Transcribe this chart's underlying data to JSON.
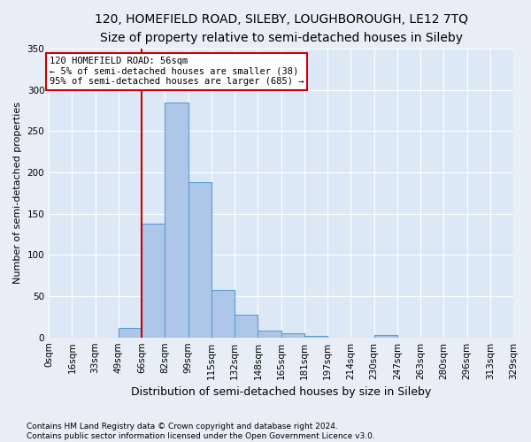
{
  "title_line1": "120, HOMEFIELD ROAD, SILEBY, LOUGHBOROUGH, LE12 7TQ",
  "title_line2": "Size of property relative to semi-detached houses in Sileby",
  "xlabel": "Distribution of semi-detached houses by size in Sileby",
  "ylabel": "Number of semi-detached properties",
  "footnote1": "Contains HM Land Registry data © Crown copyright and database right 2024.",
  "footnote2": "Contains public sector information licensed under the Open Government Licence v3.0.",
  "bin_labels": [
    "0sqm",
    "16sqm",
    "33sqm",
    "49sqm",
    "66sqm",
    "82sqm",
    "99sqm",
    "115sqm",
    "132sqm",
    "148sqm",
    "165sqm",
    "181sqm",
    "197sqm",
    "214sqm",
    "230sqm",
    "247sqm",
    "263sqm",
    "280sqm",
    "296sqm",
    "313sqm",
    "329sqm"
  ],
  "counts": [
    0,
    0,
    0,
    11,
    138,
    285,
    188,
    57,
    27,
    8,
    5,
    2,
    0,
    0,
    3,
    0,
    0,
    0,
    0,
    0
  ],
  "bar_color": "#aec6e8",
  "bar_edge_color": "#5a9fd4",
  "red_line_bin": 4,
  "annotation_text": "120 HOMEFIELD ROAD: 56sqm\n← 5% of semi-detached houses are smaller (38)\n95% of semi-detached houses are larger (685) →",
  "ylim": [
    0,
    350
  ],
  "yticks": [
    0,
    50,
    100,
    150,
    200,
    250,
    300,
    350
  ],
  "fig_background_color": "#e8eef5",
  "plot_background_color": "#dce8f5",
  "grid_color": "#ffffff",
  "title_fontsize": 10,
  "subtitle_fontsize": 9,
  "annotation_box_color": "#ffffff",
  "annotation_box_edge_color": "#cc0000",
  "red_line_color": "#cc0000",
  "footnote_fontsize": 6.5,
  "ylabel_fontsize": 8,
  "xlabel_fontsize": 9,
  "tick_fontsize": 7.5
}
